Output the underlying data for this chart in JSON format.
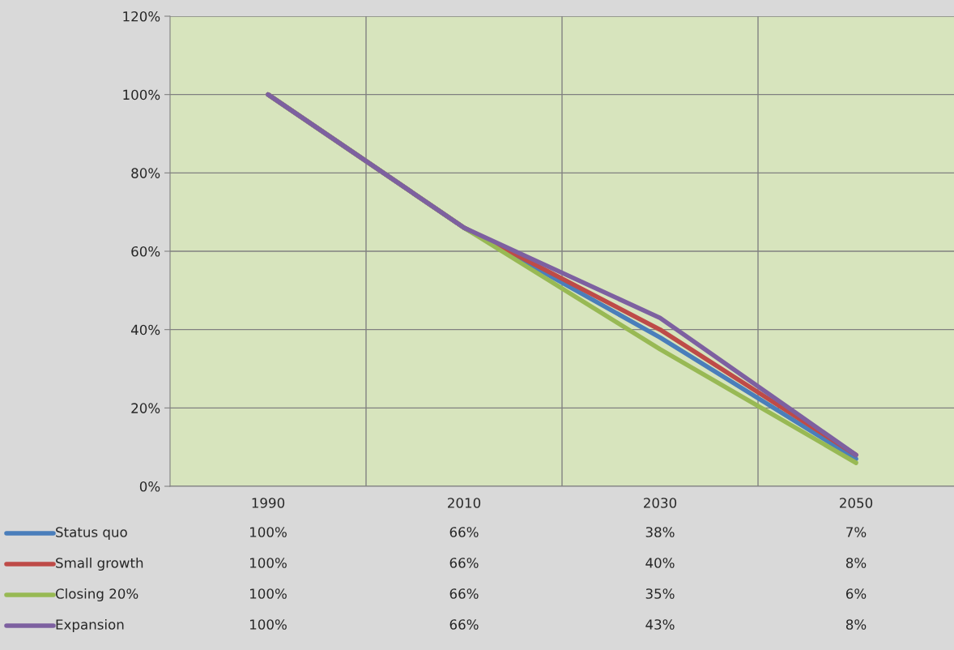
{
  "chart_data": {
    "type": "line",
    "categories": [
      "1990",
      "2010",
      "2030",
      "2050"
    ],
    "series": [
      {
        "name": "Status quo",
        "color": "#4a7ebb",
        "values": [
          100,
          66,
          38,
          7
        ],
        "value_labels": [
          "100%",
          "66%",
          "38%",
          "7%"
        ]
      },
      {
        "name": "Small growth",
        "color": "#be4b48",
        "values": [
          100,
          66,
          40,
          8
        ],
        "value_labels": [
          "100%",
          "66%",
          "40%",
          "8%"
        ]
      },
      {
        "name": "Closing 20%",
        "color": "#98b954",
        "values": [
          100,
          66,
          35,
          6
        ],
        "value_labels": [
          "100%",
          "66%",
          "35%",
          "6%"
        ]
      },
      {
        "name": "Expansion",
        "color": "#7d60a0",
        "values": [
          100,
          66,
          43,
          8
        ],
        "value_labels": [
          "100%",
          "66%",
          "43%",
          "8%"
        ]
      }
    ],
    "ylim": [
      0,
      120
    ],
    "yticks": [
      {
        "value": 0,
        "label": "0%"
      },
      {
        "value": 20,
        "label": "20%"
      },
      {
        "value": 40,
        "label": "40%"
      },
      {
        "value": 60,
        "label": "60%"
      },
      {
        "value": 80,
        "label": "80%"
      },
      {
        "value": 100,
        "label": "100%"
      },
      {
        "value": 120,
        "label": "120%"
      }
    ],
    "grid": true,
    "legend": "bottom",
    "marker": "none",
    "line_style": "solid"
  }
}
